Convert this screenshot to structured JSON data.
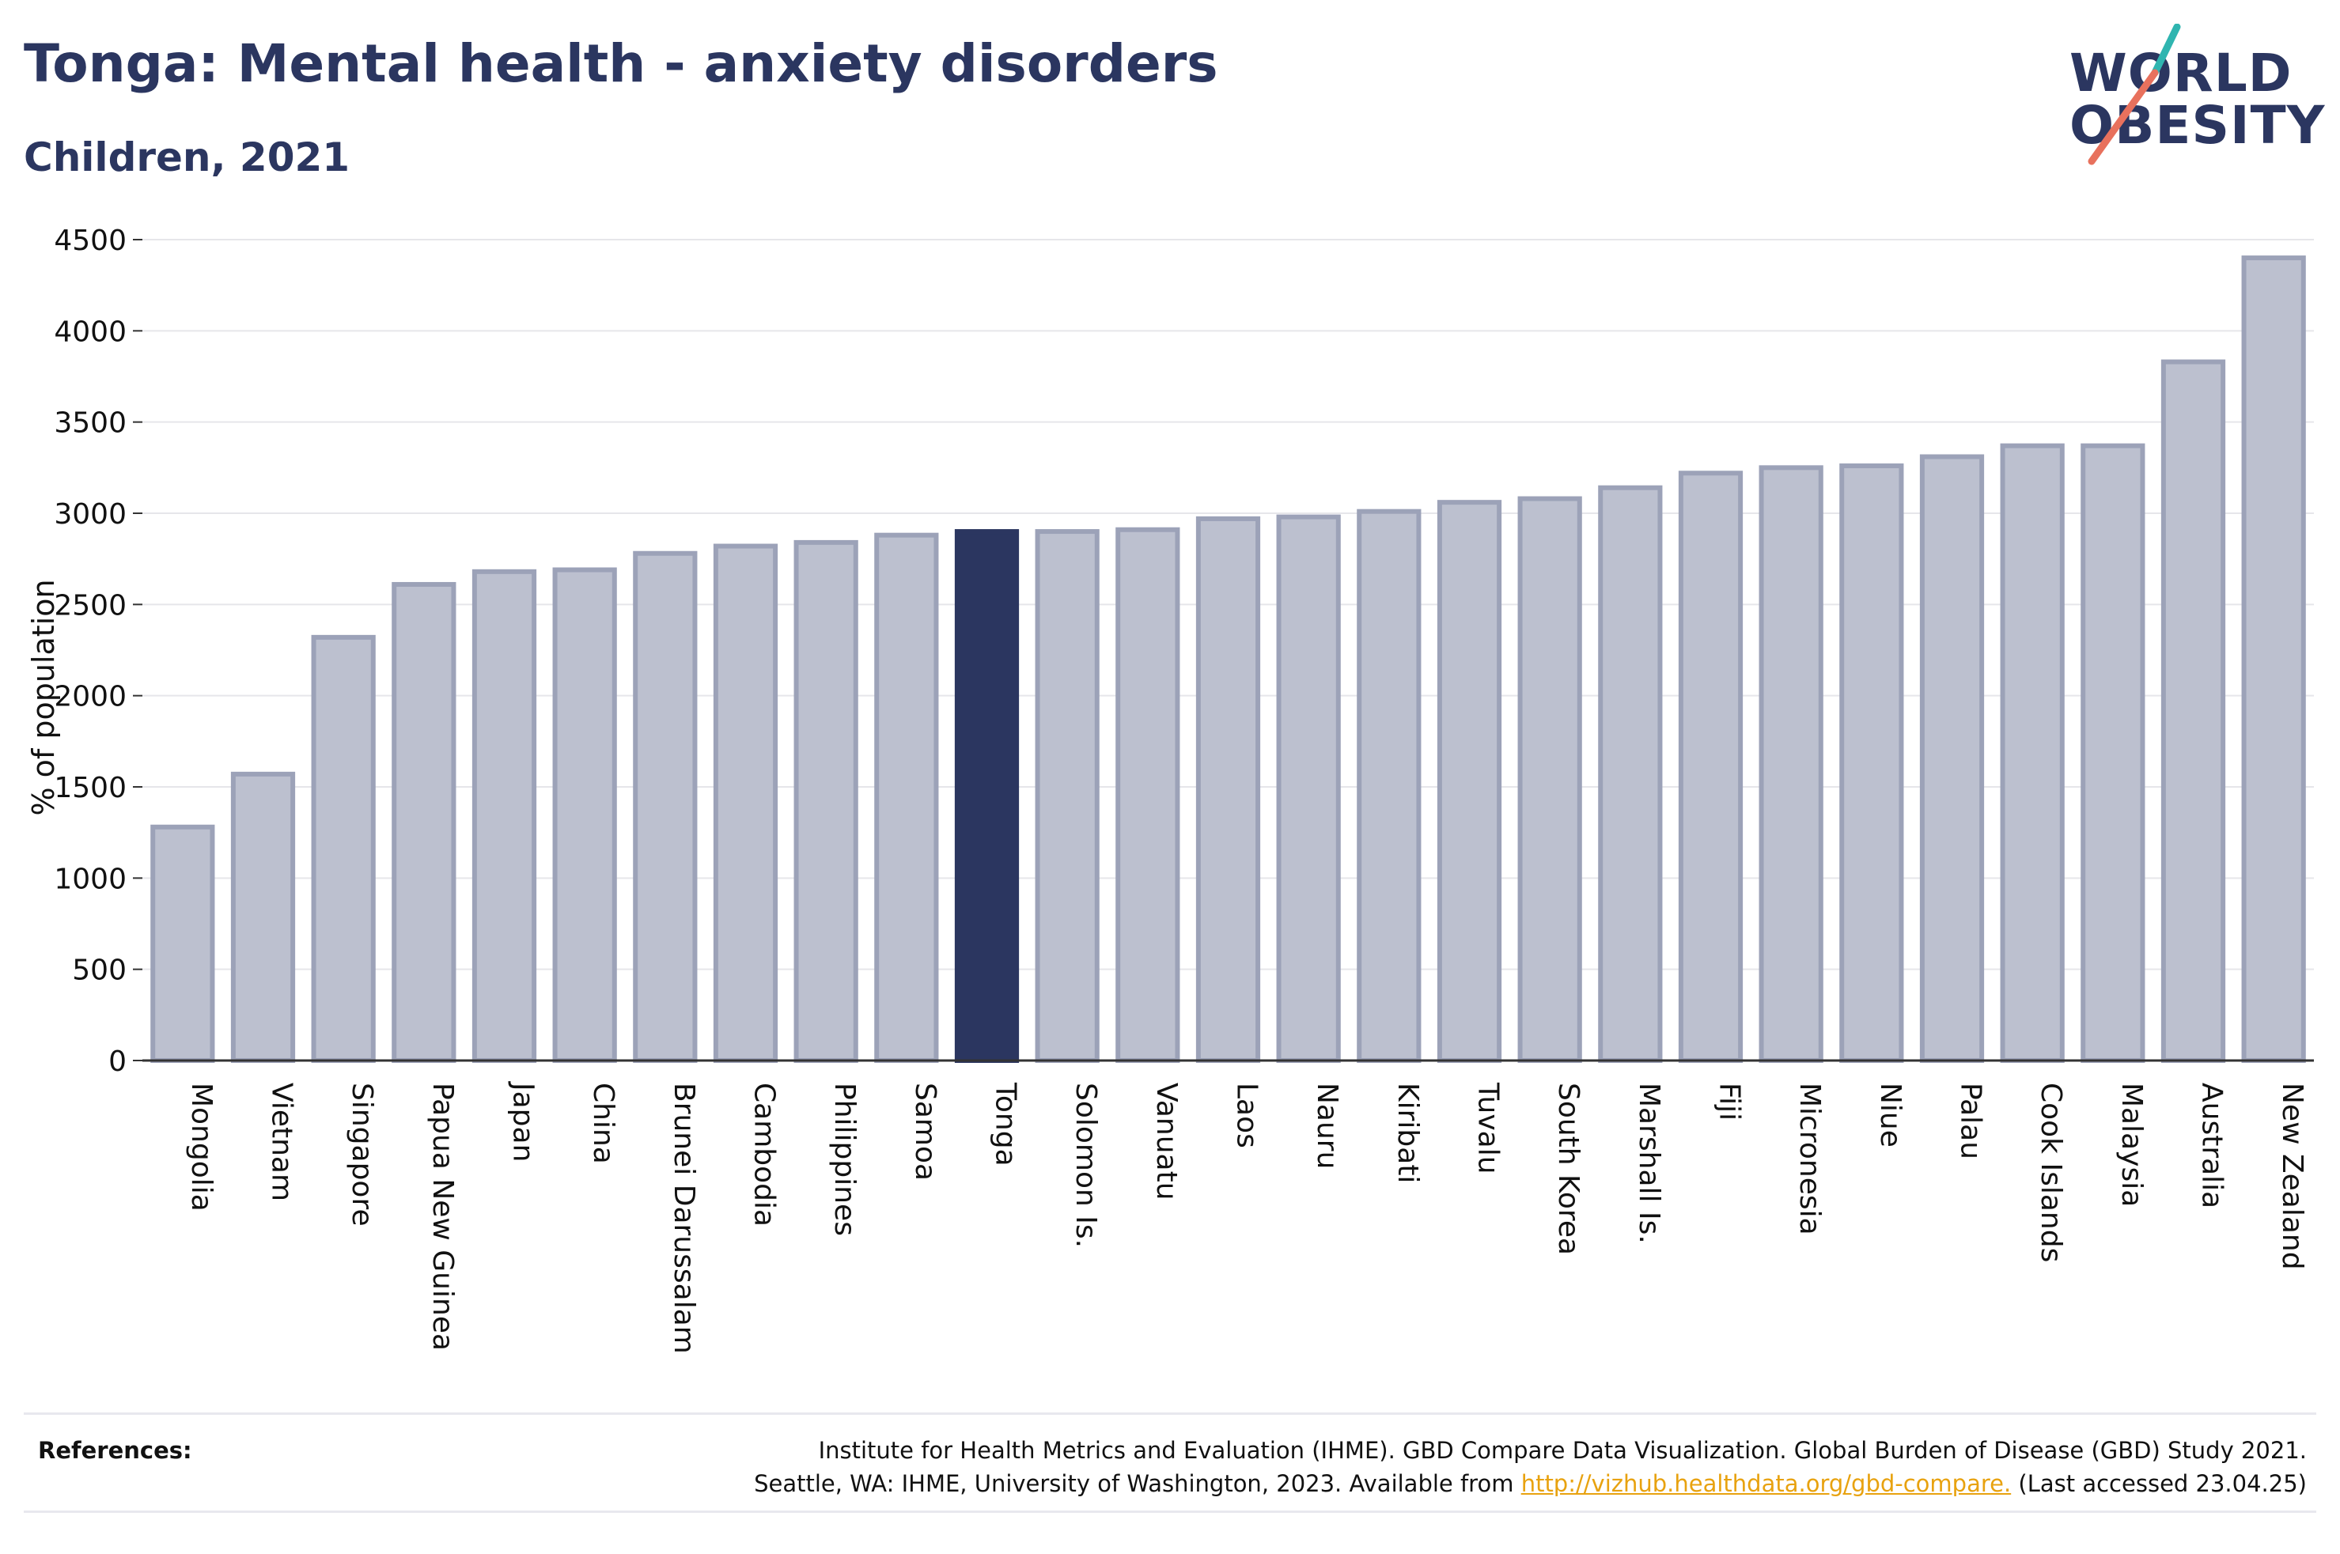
{
  "header": {
    "title": "Tonga: Mental health - anxiety disorders",
    "subtitle": "Children, 2021"
  },
  "logo": {
    "line1": "WORLD",
    "line2": "OBESITY"
  },
  "colors": {
    "highlight": "#2b3660",
    "bar_fill": "#bcc0cf",
    "bar_stroke": "#9ca2b8",
    "text": "#111111",
    "grid": "#e6e6ea",
    "link": "#e8a20f",
    "logo_teal": "#2fb5b0",
    "logo_coral": "#e8715d"
  },
  "chart_data": {
    "type": "bar",
    "title": "Tonga: Mental health - anxiety disorders",
    "subtitle": "Children, 2021",
    "ylabel": "% of population",
    "xlabel": "",
    "ylim": [
      0,
      4500
    ],
    "yticks": [
      0,
      500,
      1000,
      1500,
      2000,
      2500,
      3000,
      3500,
      4000,
      4500
    ],
    "grid": true,
    "highlight": "Tonga",
    "categories": [
      "Mongolia",
      "Vietnam",
      "Singapore",
      "Papua New Guinea",
      "Japan",
      "China",
      "Brunei Darussalam",
      "Cambodia",
      "Philippines",
      "Samoa",
      "Tonga",
      "Solomon Is.",
      "Vanuatu",
      "Laos",
      "Nauru",
      "Kiribati",
      "Tuvalu",
      "South Korea",
      "Marshall Is.",
      "Fiji",
      "Micronesia",
      "Niue",
      "Palau",
      "Cook Islands",
      "Malaysia",
      "Australia",
      "New Zealand"
    ],
    "values": [
      1280,
      1570,
      2320,
      2610,
      2680,
      2690,
      2780,
      2820,
      2840,
      2880,
      2900,
      2900,
      2910,
      2970,
      2980,
      3010,
      3060,
      3080,
      3140,
      3220,
      3250,
      3260,
      3310,
      3370,
      3370,
      3830,
      4400
    ]
  },
  "references": {
    "label": "References:",
    "line1": "Institute for Health Metrics and Evaluation (IHME). GBD Compare Data Visualization. Global Burden of Disease (GBD) Study 2021.",
    "line2_prefix": "Seattle, WA: IHME, University of Washington, 2023. Available from ",
    "link": "http://vizhub.healthdata.org/gbd-compare.",
    "line2_suffix": " (Last accessed 23.04.25)"
  }
}
